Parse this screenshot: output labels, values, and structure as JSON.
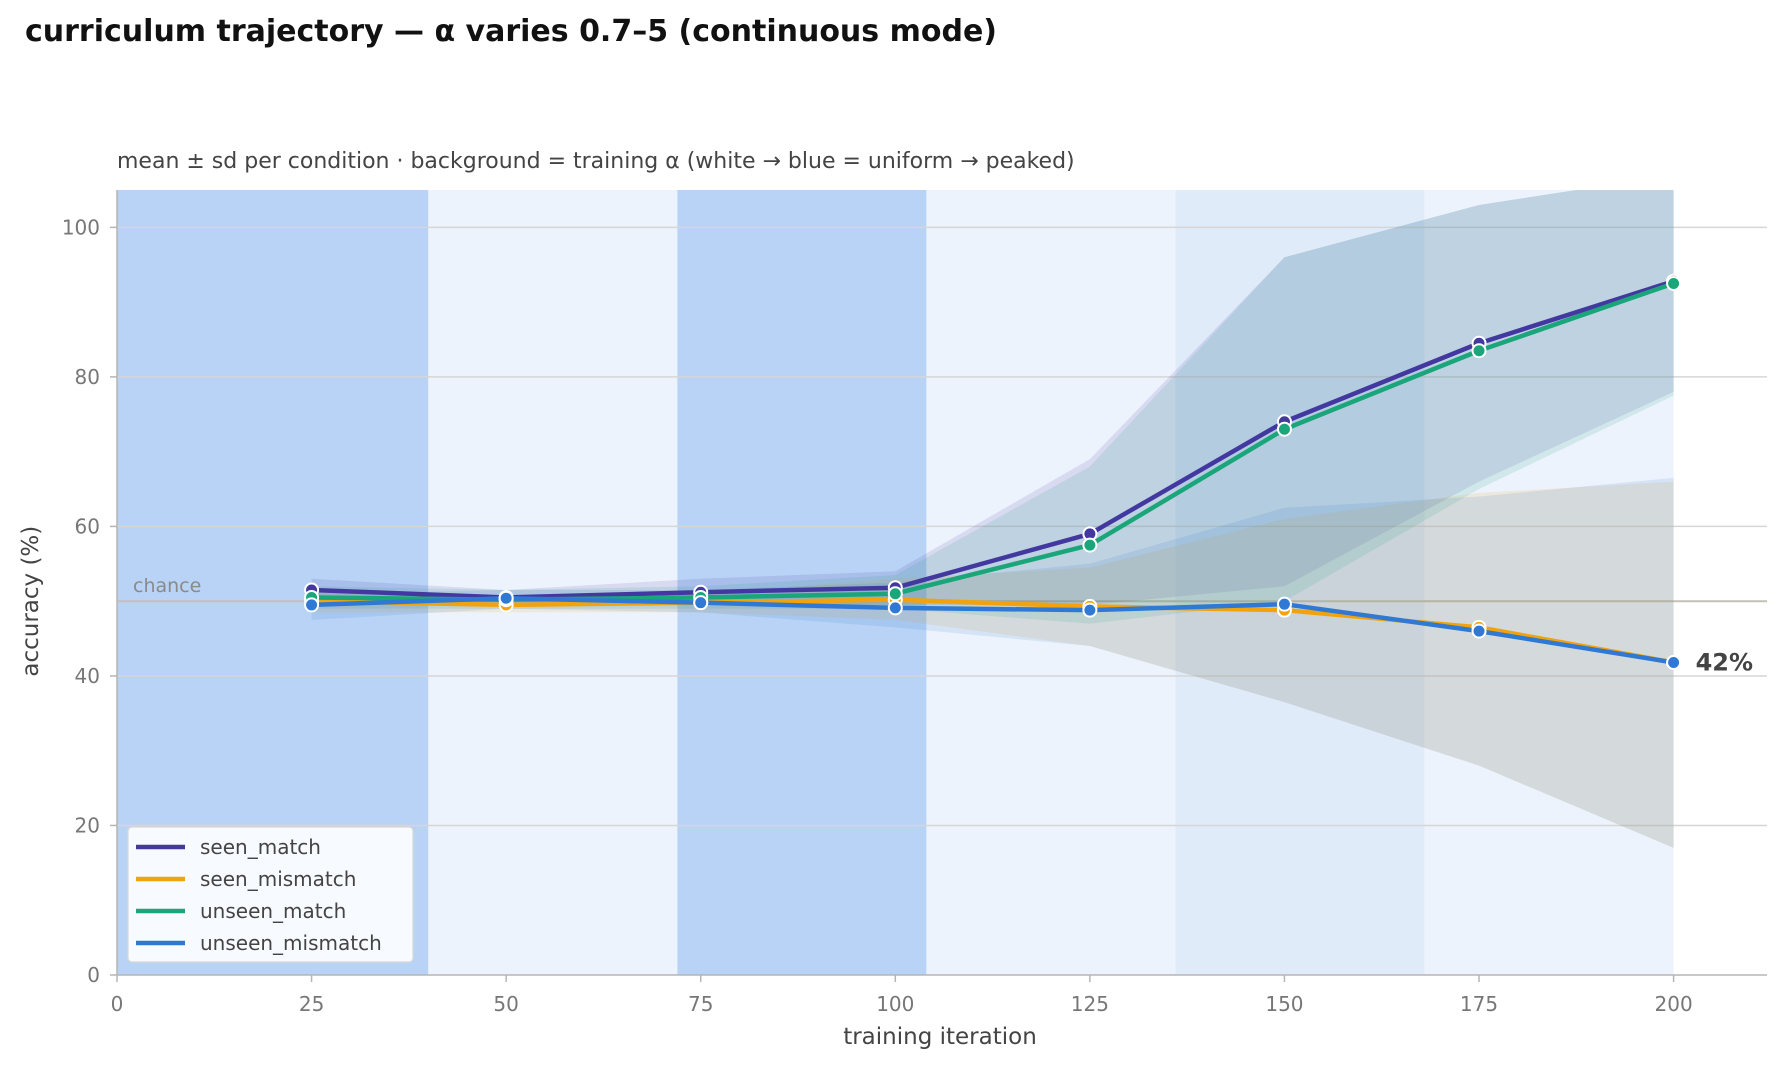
{
  "chart_data": {
    "type": "line",
    "title": "curriculum trajectory — α varies 0.7–5 (continuous mode)",
    "subtitle": "mean ± sd per condition · background = training α (white → blue = uniform → peaked)",
    "xlabel": "training iteration",
    "ylabel": "accuracy (%)",
    "xlim": [
      0,
      212
    ],
    "ylim": [
      0,
      105
    ],
    "xticks": [
      0,
      25,
      50,
      75,
      100,
      125,
      150,
      175,
      200
    ],
    "yticks": [
      0,
      20,
      40,
      60,
      80,
      100
    ],
    "grid": "horizontal",
    "legend_position": "lower-left",
    "chance_level": 50,
    "chance_label": "chance",
    "end_annotation": "42%",
    "background_bands": [
      {
        "x0": 0,
        "x1": 40,
        "level": "peaked"
      },
      {
        "x0": 40,
        "x1": 72,
        "level": "uniform"
      },
      {
        "x0": 72,
        "x1": 104,
        "level": "peaked"
      },
      {
        "x0": 104,
        "x1": 136,
        "level": "uniform"
      },
      {
        "x0": 136,
        "x1": 168,
        "level": "light"
      },
      {
        "x0": 168,
        "x1": 200,
        "level": "uniform"
      }
    ],
    "band_colors": {
      "peaked": "#b8d3f5",
      "uniform": "#edf3fc",
      "light": "#e0ebfa"
    },
    "x": [
      25,
      50,
      75,
      100,
      125,
      150,
      175,
      200
    ],
    "series": [
      {
        "name": "seen_match",
        "color": "#4338a0",
        "values": [
          51.5,
          50.5,
          51.2,
          51.8,
          59.0,
          74.0,
          84.5,
          92.8
        ],
        "lower": [
          50.0,
          49.5,
          49.5,
          49.5,
          49.5,
          52.0,
          66.0,
          78.0
        ],
        "upper": [
          53.0,
          51.5,
          53.0,
          54.0,
          69.0,
          96.0,
          103.0,
          107.0
        ]
      },
      {
        "name": "seen_mismatch",
        "color": "#f2a20c",
        "values": [
          50.0,
          49.5,
          49.8,
          50.2,
          49.3,
          48.8,
          46.5,
          41.8
        ],
        "lower": [
          48.5,
          48.5,
          48.5,
          47.5,
          44.0,
          36.5,
          28.0,
          17.0
        ],
        "upper": [
          51.5,
          50.5,
          51.0,
          53.0,
          54.5,
          61.0,
          64.5,
          66.0
        ]
      },
      {
        "name": "unseen_match",
        "color": "#1aa67a",
        "values": [
          50.5,
          50.2,
          50.5,
          51.0,
          57.5,
          73.0,
          83.5,
          92.5
        ],
        "lower": [
          49.0,
          49.0,
          49.0,
          49.0,
          47.0,
          50.0,
          65.0,
          77.5
        ],
        "upper": [
          52.0,
          51.5,
          52.0,
          53.5,
          68.0,
          96.0,
          103.0,
          107.0
        ]
      },
      {
        "name": "unseen_mismatch",
        "color": "#2f78d4",
        "values": [
          49.5,
          50.4,
          49.8,
          49.1,
          48.8,
          49.6,
          46.0,
          41.8
        ],
        "lower": [
          47.5,
          49.0,
          48.5,
          46.5,
          44.0,
          36.5,
          28.0,
          17.0
        ],
        "upper": [
          51.0,
          51.5,
          51.5,
          52.5,
          55.0,
          62.5,
          64.0,
          66.5
        ]
      }
    ]
  }
}
